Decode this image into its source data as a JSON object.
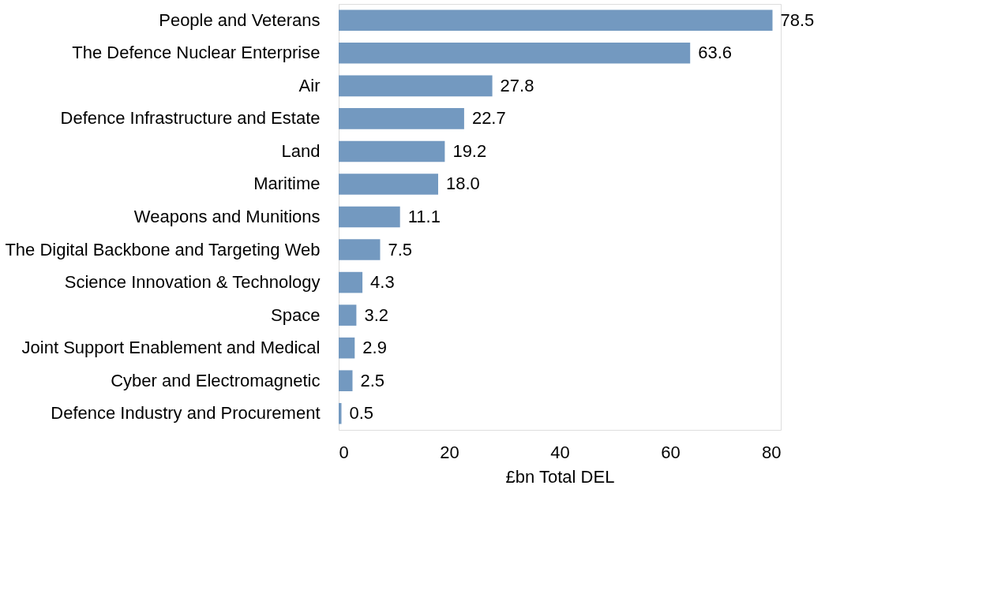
{
  "chart_data": {
    "type": "bar",
    "orientation": "horizontal",
    "xlabel": "£bn Total DEL",
    "categories": [
      "People and Veterans",
      "The Defence Nuclear Enterprise",
      "Air",
      "Defence Infrastructure and Estate",
      "Land",
      "Maritime",
      "Weapons and Munitions",
      "The Digital Backbone and Targeting Web",
      "Science Innovation & Technology",
      "Space",
      "Joint Support Enablement and Medical",
      "Cyber and Electromagnetic",
      "Defence Industry and Procurement"
    ],
    "values": [
      78.5,
      63.6,
      27.8,
      22.7,
      19.2,
      18.0,
      11.1,
      7.5,
      4.3,
      3.2,
      2.9,
      2.5,
      0.5
    ],
    "value_labels": [
      "78.5",
      "63.6",
      "27.8",
      "22.7",
      "19.2",
      "18.0",
      "11.1",
      "7.5",
      "4.3",
      "3.2",
      "2.9",
      "2.5",
      "0.5"
    ],
    "color": "#7399c0",
    "xlim": [
      0,
      80
    ],
    "xticks": [
      0,
      20,
      40,
      60,
      80
    ],
    "grid": false
  }
}
